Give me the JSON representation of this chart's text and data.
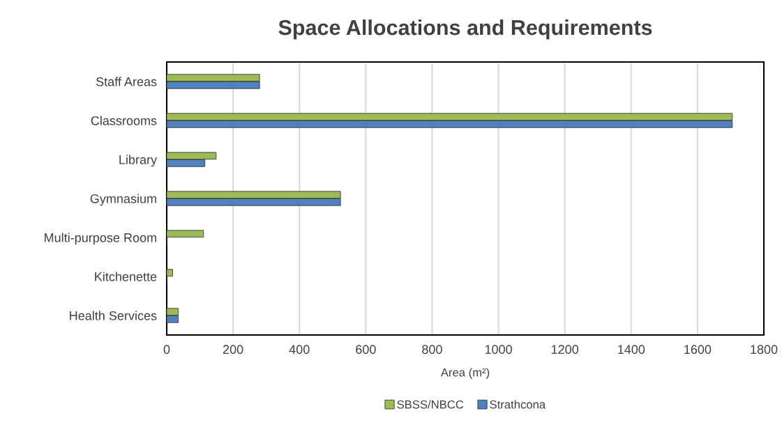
{
  "chart_data": {
    "type": "bar",
    "orientation": "horizontal",
    "title": "Space Allocations and Requirements",
    "xlabel": "Area (m²)",
    "categories": [
      "Staff Areas",
      "Classrooms",
      "Library",
      "Gymnasium",
      "Multi-purpose Room",
      "Kitchenette",
      "Health Services"
    ],
    "series": [
      {
        "name": "SBSS/NBCC",
        "color": "#9bbb59",
        "values": [
          280,
          1705,
          149,
          524,
          111,
          18,
          35
        ]
      },
      {
        "name": "Strathcona",
        "color": "#4f81bd",
        "values": [
          280,
          1705,
          115,
          524,
          null,
          null,
          35
        ]
      }
    ],
    "xlim": [
      0,
      1800
    ],
    "xticks": [
      0,
      200,
      400,
      600,
      800,
      1000,
      1200,
      1400,
      1600,
      1800
    ],
    "grid": "x",
    "legend": "bottom"
  }
}
